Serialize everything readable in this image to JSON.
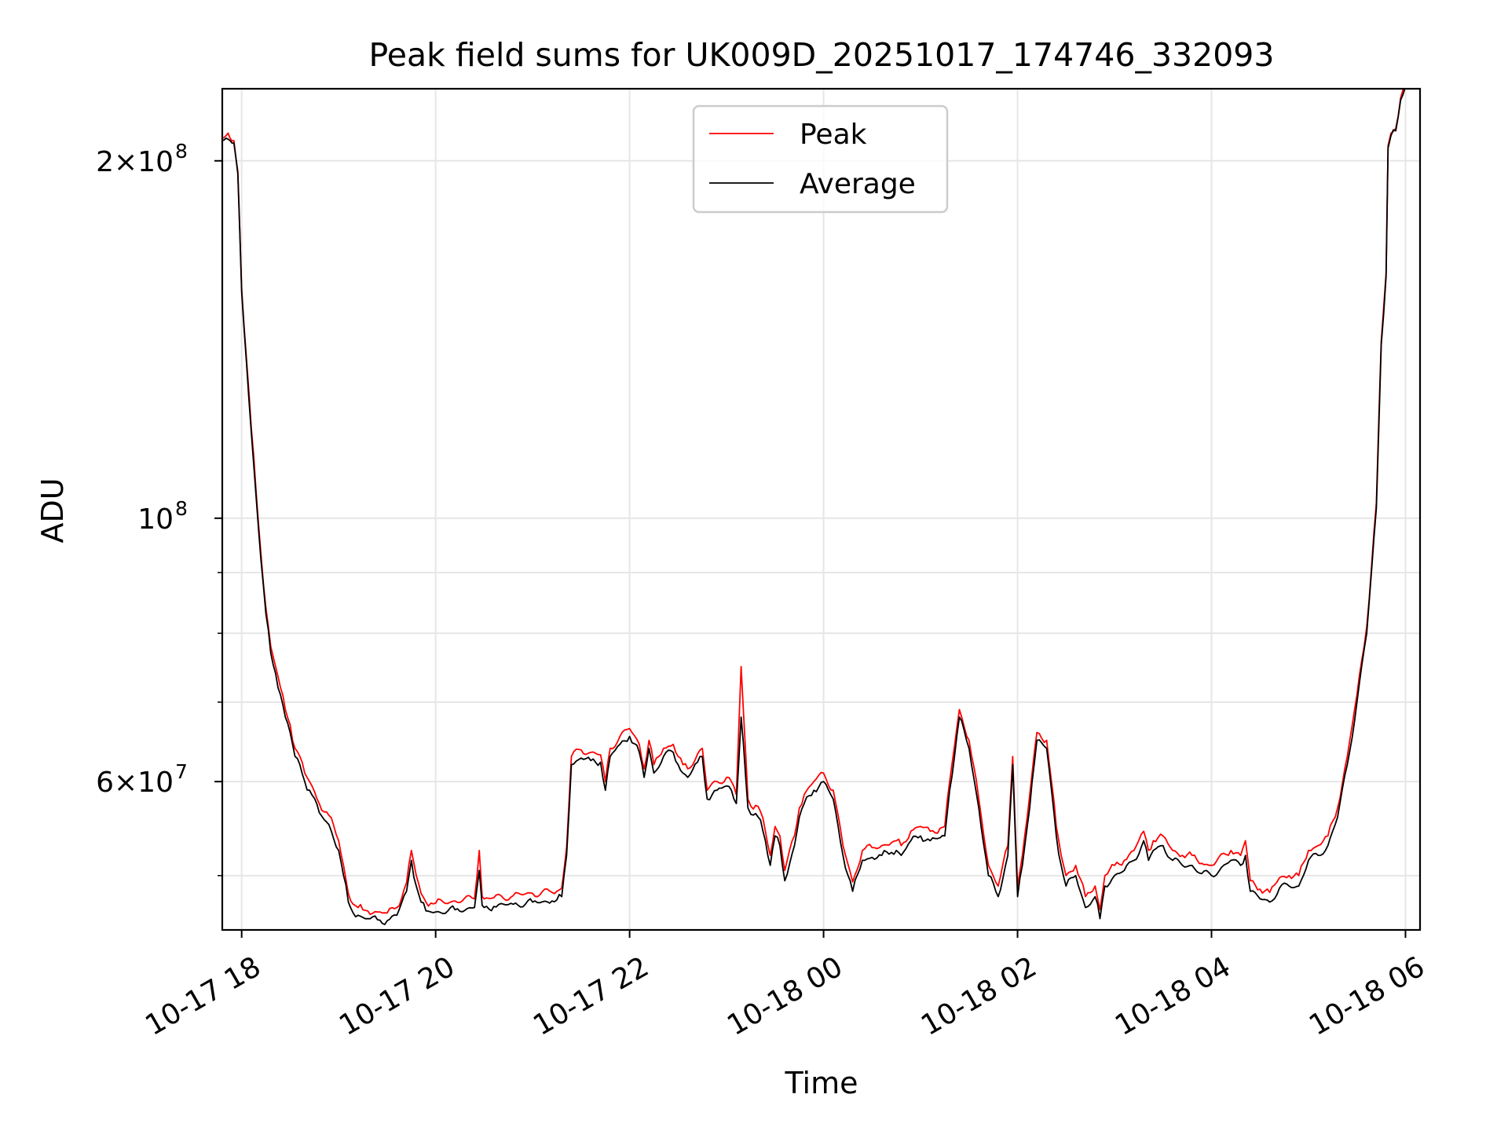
{
  "chart_data": {
    "type": "line",
    "title": "Peak field sums for UK009D_20251017_174746_332093",
    "xlabel": "Time",
    "ylabel": "ADU",
    "yscale": "log",
    "ylim": [
      45000000,
      230000000
    ],
    "xlim_hours": [
      -0.2,
      12.15
    ],
    "xticks": [
      {
        "label": "10-17 18",
        "hours": 0
      },
      {
        "label": "10-17 20",
        "hours": 2
      },
      {
        "label": "10-17 22",
        "hours": 4
      },
      {
        "label": "10-18 00",
        "hours": 6
      },
      {
        "label": "10-18 02",
        "hours": 8
      },
      {
        "label": "10-18 04",
        "hours": 10
      },
      {
        "label": "10-18 06",
        "hours": 12
      }
    ],
    "ytick_labels": [
      {
        "value": 200000000,
        "base": "2×10",
        "exp": "8"
      },
      {
        "value": 100000000,
        "base": "10",
        "exp": "8"
      },
      {
        "value": 60000000,
        "base": "6×10",
        "exp": "7"
      }
    ],
    "yminor_ticks": [
      50000000,
      70000000,
      80000000,
      90000000
    ],
    "grid": true,
    "legend": {
      "position": "top-center",
      "entries": [
        {
          "label": "Peak",
          "color": "#ff0000"
        },
        {
          "label": "Average",
          "color": "#000000"
        }
      ]
    },
    "series": [
      {
        "name": "Average",
        "color": "#000000",
        "x_hours": [
          -0.19,
          -0.16,
          -0.12,
          -0.08,
          -0.04,
          -0.02,
          0.0,
          0.05,
          0.1,
          0.15,
          0.2,
          0.25,
          0.3,
          0.35,
          0.4,
          0.45,
          0.5,
          0.55,
          0.6,
          0.65,
          0.7,
          0.8,
          0.9,
          1.0,
          1.05,
          1.1,
          1.15,
          1.2,
          1.25,
          1.3,
          1.4,
          1.5,
          1.6,
          1.7,
          1.75,
          1.8,
          1.85,
          1.9,
          1.95,
          2.0,
          2.2,
          2.4,
          2.45,
          2.48,
          2.5,
          2.6,
          2.8,
          3.0,
          3.2,
          3.25,
          3.3,
          3.35,
          3.4,
          3.5,
          3.6,
          3.7,
          3.75,
          3.8,
          3.9,
          4.0,
          4.1,
          4.15,
          4.2,
          4.25,
          4.35,
          4.45,
          4.5,
          4.55,
          4.6,
          4.7,
          4.75,
          4.8,
          4.9,
          5.0,
          5.05,
          5.1,
          5.15,
          5.22,
          5.25,
          5.3,
          5.35,
          5.4,
          5.45,
          5.5,
          5.55,
          5.6,
          5.7,
          5.75,
          5.8,
          5.9,
          6.0,
          6.1,
          6.2,
          6.3,
          6.4,
          6.5,
          6.6,
          6.7,
          6.75,
          6.8,
          6.9,
          7.0,
          7.1,
          7.2,
          7.25,
          7.3,
          7.4,
          7.5,
          7.6,
          7.7,
          7.8,
          7.9,
          7.95,
          8.0,
          8.05,
          8.1,
          8.15,
          8.2,
          8.3,
          8.35,
          8.4,
          8.45,
          8.5,
          8.6,
          8.7,
          8.8,
          8.85,
          8.9,
          9.0,
          9.1,
          9.2,
          9.3,
          9.35,
          9.4,
          9.5,
          9.6,
          9.7,
          9.8,
          9.9,
          10.0,
          10.2,
          10.3,
          10.35,
          10.4,
          10.5,
          10.6,
          10.7,
          10.8,
          10.9,
          11.0,
          11.1,
          11.2,
          11.3,
          11.4,
          11.5,
          11.6,
          11.7,
          11.75,
          11.8,
          11.82,
          11.85,
          11.9,
          11.95,
          12.0
        ],
        "values_millions": [
          208,
          209,
          208,
          207,
          195,
          175,
          155,
          135,
          118,
          104,
          92,
          83,
          77,
          74,
          71,
          68,
          66,
          63,
          62,
          60,
          59,
          56.5,
          55.2,
          52.5,
          50,
          47.5,
          46.5,
          46.3,
          46.1,
          46,
          45.9,
          45.8,
          46.3,
          48.5,
          51.5,
          49,
          47.5,
          46.7,
          46.6,
          46.6,
          46.8,
          47,
          50.5,
          47.2,
          47,
          47.1,
          47.3,
          47.5,
          47.6,
          47.7,
          48,
          52,
          62,
          62.8,
          62.5,
          62.3,
          59,
          63,
          64.5,
          65.5,
          63.5,
          60.5,
          64,
          61,
          63,
          63.5,
          62,
          61,
          60.5,
          62.3,
          63,
          58,
          59,
          59.5,
          59,
          57.5,
          68,
          57,
          56.3,
          56.4,
          55.7,
          53.5,
          51,
          54,
          53,
          49.5,
          53,
          56,
          57.5,
          59,
          60,
          58,
          52,
          48.5,
          51.5,
          51.8,
          52,
          52.3,
          52.5,
          52,
          53.5,
          54,
          53.5,
          53.8,
          54,
          59,
          68,
          64,
          57,
          50,
          48,
          52,
          62,
          48,
          51,
          55,
          60,
          65,
          64,
          59,
          54,
          51,
          49,
          50,
          47,
          48,
          46,
          49,
          50,
          50.5,
          51.5,
          53.5,
          51.5,
          52.5,
          53,
          51.5,
          51,
          51,
          50.2,
          50,
          51.5,
          51,
          52,
          48.5,
          47.8,
          47.5,
          48.8,
          49,
          49,
          51.5,
          52,
          53,
          56,
          62,
          70,
          80,
          102,
          140,
          160,
          205,
          210,
          212,
          225,
          231
        ],
        "line_width": 1.8
      },
      {
        "name": "Peak",
        "color": "#ff0000",
        "x_hours": [
          -0.19,
          -0.16,
          -0.12,
          -0.08,
          -0.04,
          -0.02,
          0.0,
          0.05,
          0.1,
          0.15,
          0.2,
          0.25,
          0.3,
          0.35,
          0.4,
          0.45,
          0.5,
          0.55,
          0.6,
          0.65,
          0.7,
          0.8,
          0.9,
          1.0,
          1.05,
          1.1,
          1.15,
          1.2,
          1.25,
          1.3,
          1.4,
          1.5,
          1.6,
          1.7,
          1.75,
          1.8,
          1.85,
          1.9,
          1.95,
          2.0,
          2.2,
          2.4,
          2.45,
          2.48,
          2.5,
          2.6,
          2.8,
          3.0,
          3.2,
          3.25,
          3.3,
          3.35,
          3.4,
          3.5,
          3.6,
          3.7,
          3.75,
          3.8,
          3.9,
          4.0,
          4.1,
          4.15,
          4.2,
          4.25,
          4.35,
          4.45,
          4.5,
          4.55,
          4.6,
          4.7,
          4.75,
          4.8,
          4.9,
          5.0,
          5.05,
          5.1,
          5.15,
          5.22,
          5.25,
          5.3,
          5.35,
          5.4,
          5.45,
          5.5,
          5.55,
          5.6,
          5.7,
          5.75,
          5.8,
          5.9,
          6.0,
          6.1,
          6.2,
          6.3,
          6.4,
          6.5,
          6.6,
          6.7,
          6.75,
          6.8,
          6.9,
          7.0,
          7.1,
          7.2,
          7.25,
          7.3,
          7.4,
          7.5,
          7.6,
          7.7,
          7.8,
          7.9,
          7.95,
          8.0,
          8.05,
          8.1,
          8.15,
          8.2,
          8.3,
          8.35,
          8.4,
          8.45,
          8.5,
          8.6,
          8.7,
          8.8,
          8.85,
          8.9,
          9.0,
          9.1,
          9.2,
          9.3,
          9.35,
          9.4,
          9.5,
          9.6,
          9.7,
          9.8,
          9.9,
          10.0,
          10.2,
          10.3,
          10.35,
          10.4,
          10.5,
          10.6,
          10.7,
          10.8,
          10.9,
          11.0,
          11.1,
          11.2,
          11.3,
          11.4,
          11.5,
          11.6,
          11.7,
          11.75,
          11.8,
          11.82,
          11.85,
          11.9,
          11.95,
          12.0
        ],
        "values_millions": [
          209,
          210,
          209,
          208,
          196,
          176,
          156,
          136,
          119,
          105,
          93,
          84,
          78,
          75,
          72,
          69,
          67,
          64,
          63,
          61,
          60,
          57.5,
          56.2,
          53.5,
          51,
          48.3,
          47.3,
          47,
          46.8,
          46.7,
          46.6,
          46.5,
          47,
          49.3,
          52.5,
          50,
          48.3,
          47.5,
          47.4,
          47.4,
          47.6,
          47.8,
          52.5,
          48,
          47.8,
          47.9,
          48.1,
          48.3,
          48.4,
          48.5,
          48.8,
          52.8,
          63,
          63.8,
          63.5,
          63.2,
          60,
          64,
          65.5,
          66.5,
          64.5,
          61.5,
          65,
          62,
          64,
          64.5,
          63,
          62,
          61.5,
          63.3,
          64,
          59,
          60,
          60.5,
          60,
          58.5,
          75,
          58,
          57.2,
          57.3,
          56.6,
          54.5,
          52,
          55,
          54,
          50.5,
          54,
          57,
          58.5,
          60,
          61,
          59,
          53,
          49.4,
          52.5,
          52.8,
          53,
          53.3,
          53.5,
          53,
          54.5,
          55,
          54.5,
          54.8,
          55,
          60,
          69,
          65,
          58,
          51,
          49,
          53,
          63,
          49,
          52,
          56,
          61,
          66,
          65,
          60,
          55,
          52,
          50,
          51,
          48,
          49,
          46.8,
          50,
          51,
          51.5,
          52.5,
          54.5,
          52.5,
          53.5,
          54,
          52.5,
          52,
          52,
          51.2,
          51,
          52.5,
          52,
          53.5,
          49.5,
          48.7,
          48.4,
          49.8,
          50,
          50,
          52.5,
          53,
          54,
          57,
          63,
          71,
          81,
          103,
          141,
          161,
          206,
          211,
          213,
          226,
          232
        ],
        "line_width": 1.8
      }
    ]
  }
}
